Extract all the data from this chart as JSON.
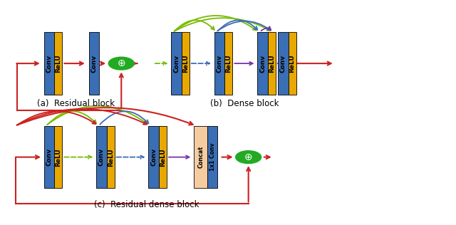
{
  "bg_color": "#ffffff",
  "blue_color": "#3a6eb5",
  "yellow_color": "#e8a800",
  "green_color": "#22aa22",
  "red_color": "#cc2222",
  "purple_color": "#7733aa",
  "lime_color": "#77bb00",
  "dark_green_color": "#228800",
  "peach_color": "#f5cba0",
  "label_a": "(a)  Residual block",
  "label_b": "(b)  Dense block",
  "label_c": "(c)  Residual dense block",
  "conv_text": "Conv",
  "relu_text": "ReLU",
  "concat_text": "Concat",
  "oneconv_text": "1x1 Conv",
  "fig_w": 6.4,
  "fig_h": 3.16,
  "dpi": 100
}
